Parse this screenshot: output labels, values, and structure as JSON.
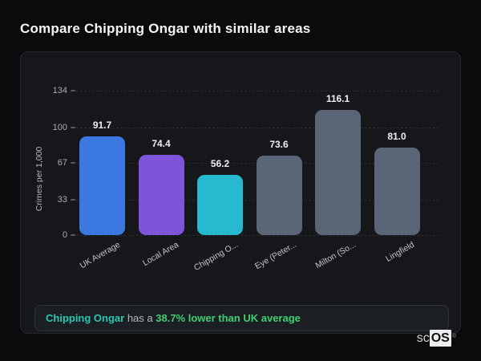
{
  "page": {
    "title": "Compare Chipping Ongar with similar areas"
  },
  "chart_data": {
    "type": "bar",
    "title": "Compare Chipping Ongar with similar areas",
    "ylabel": "Crimes per 1,000",
    "xlabel": "",
    "ylim": [
      0,
      134
    ],
    "yticks": [
      0,
      33,
      67,
      100,
      134
    ],
    "grid": "horizontal-dashed",
    "legend": "none",
    "categories": [
      "UK Average",
      "Local Area",
      "Chipping O...",
      "Eye (Peter...",
      "Milton (So...",
      "Lingfield"
    ],
    "values": [
      91.7,
      74.4,
      56.2,
      73.6,
      116.1,
      81.0
    ],
    "value_labels": [
      "91.7",
      "74.4",
      "56.2",
      "73.6",
      "116.1",
      "81.0"
    ],
    "bar_colors": [
      "#3b79e1",
      "#7e55da",
      "#27b9d0",
      "#5a6578",
      "#5a6578",
      "#5a6578"
    ]
  },
  "note": {
    "subject": "Chipping Ongar",
    "connector": " has a ",
    "highlight": "38.7% lower than UK average"
  },
  "watermark": {
    "prefix": "sc",
    "suffix": "OS",
    "registered": "®"
  },
  "colors": {
    "page_bg": "#0a0b0d",
    "card_bg": "#15171a",
    "accent_teal": "#2bc8b0",
    "accent_green": "#3ecf72",
    "bar_blue": "#3b79e1",
    "bar_purple": "#7e55da",
    "bar_cyan": "#27b9d0",
    "bar_slate": "#5a6578"
  }
}
